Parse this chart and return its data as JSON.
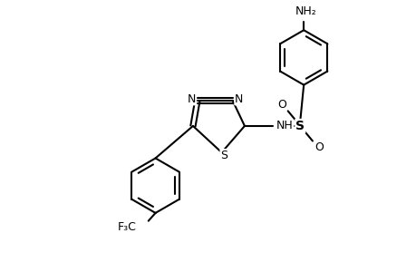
{
  "background_color": "#ffffff",
  "line_color": "#000000",
  "text_color": "#000000",
  "line_width": 1.5,
  "figsize": [
    4.6,
    3.0
  ],
  "dpi": 100,
  "xlim": [
    0,
    9.2
  ],
  "ylim": [
    0,
    6.0
  ]
}
